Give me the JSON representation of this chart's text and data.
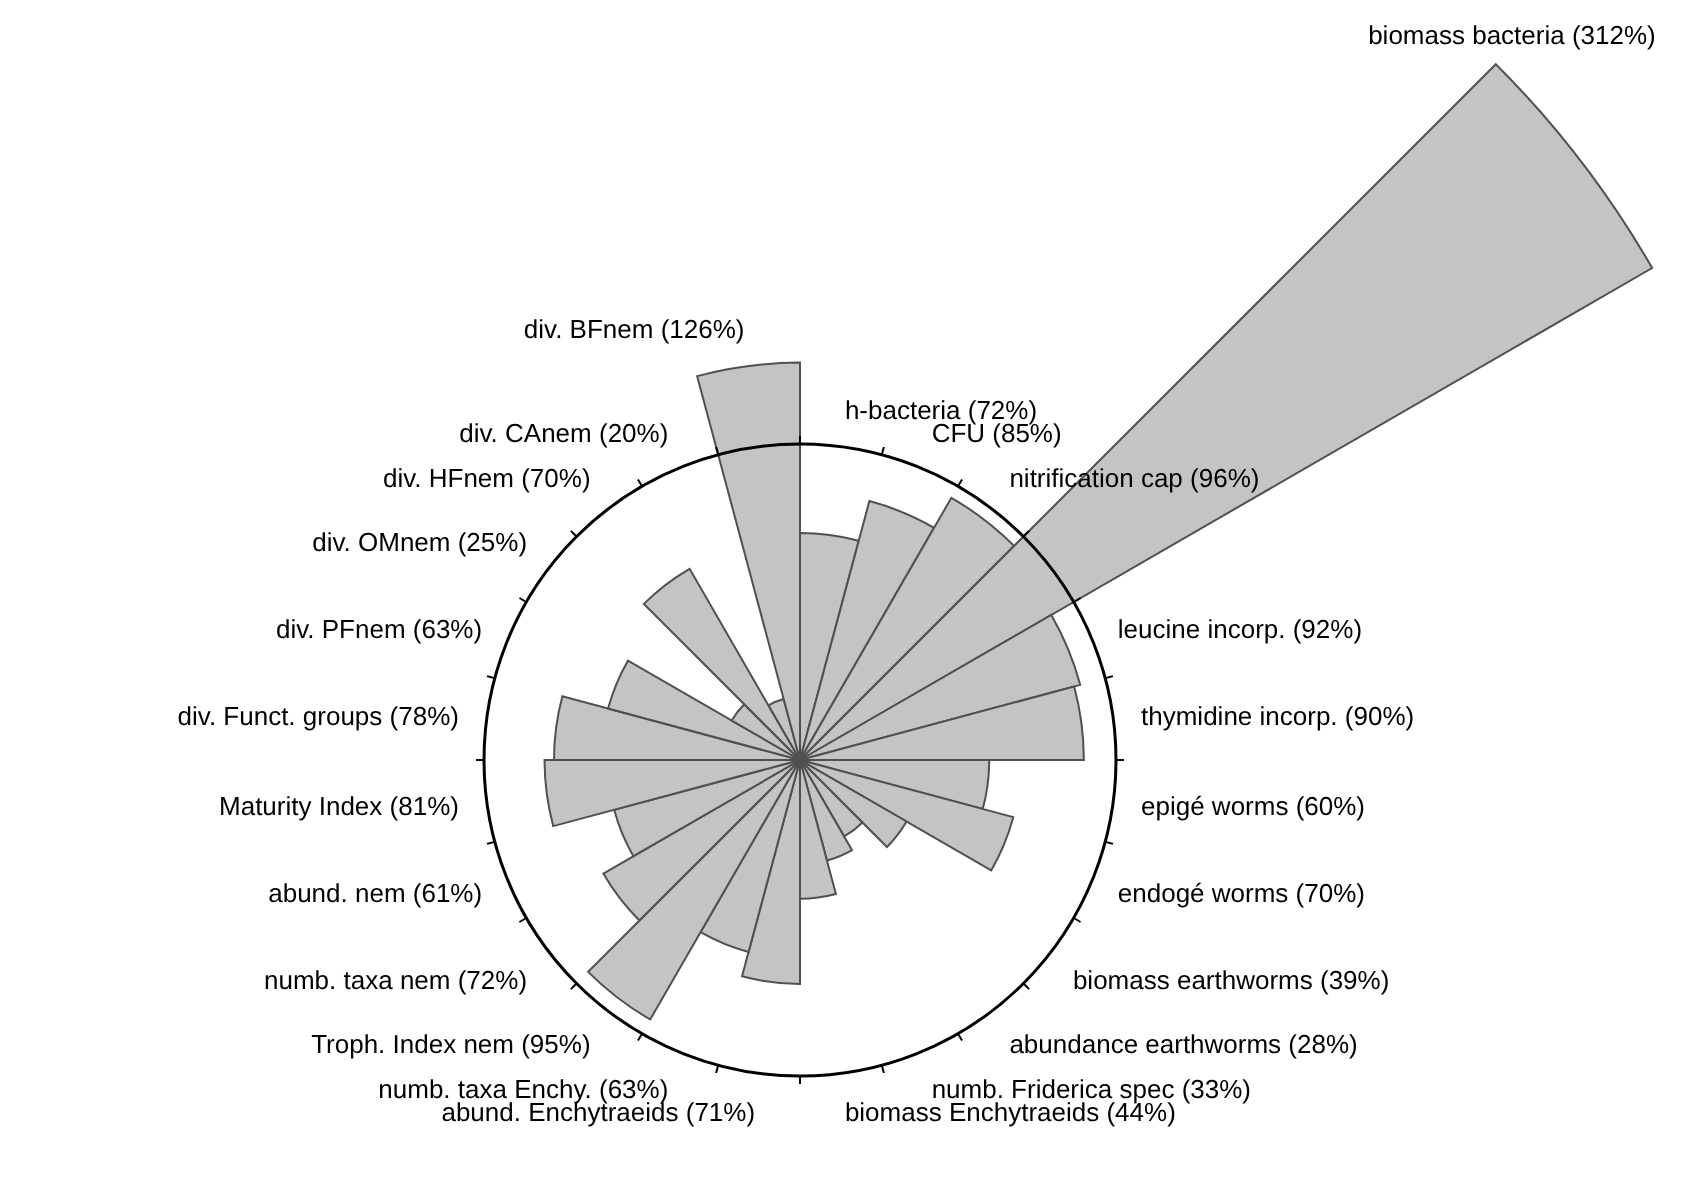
{
  "chart_data": {
    "type": "other",
    "categories": [
      "h-bacteria",
      "CFU",
      "nitrification cap",
      "biomass bacteria",
      "leucine incorp.",
      "thymidine incorp.",
      "epigé worms",
      "endogé worms",
      "biomass earthworms",
      "abundance earthworms",
      "numb. Friderica spec",
      "biomass Enchytraeids",
      "abund. Enchytraeids",
      "numb. taxa Enchy.",
      "Troph. Index nem",
      "numb. taxa nem",
      "abund. nem",
      "Maturity Index",
      "div. Funct. groups",
      "div. PFnem",
      "div. OMnem",
      "div. HFnem",
      "div. CAnem",
      "div. BFnem"
    ],
    "values": [
      72,
      85,
      96,
      312,
      92,
      90,
      60,
      70,
      39,
      28,
      33,
      44,
      71,
      63,
      95,
      72,
      61,
      81,
      78,
      63,
      25,
      70,
      20,
      126
    ],
    "value_labels": [
      "(72%)",
      "(85%)",
      "(96%)",
      "(312%)",
      "(92%)",
      "(90%)",
      "(60%)",
      "(70%)",
      "(39%)",
      "(28%)",
      "(33%)",
      "(44%)",
      "(71%)",
      "(63%)",
      "(95%)",
      "(72%)",
      "(61%)",
      "(81%)",
      "(78%)",
      "(63%)",
      "(25%)",
      "(70%)",
      "(20%)",
      "(126%)"
    ],
    "color": "#c4c4c4"
  }
}
